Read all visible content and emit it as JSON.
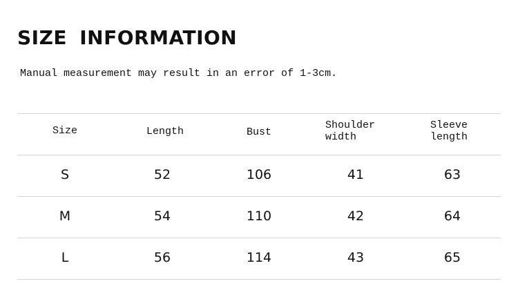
{
  "title": "SIZE INFORMATION",
  "note": "Manual measurement may result in an error of 1-3cm.",
  "table": {
    "headers": [
      {
        "line1": "Size",
        "line2": ""
      },
      {
        "line1": "Length",
        "line2": ""
      },
      {
        "line1": "Bust",
        "line2": ""
      },
      {
        "line1": "Shoulder",
        "line2": "width"
      },
      {
        "line1": "Sleeve",
        "line2": "length"
      }
    ],
    "rows": [
      [
        "S",
        "52",
        "106",
        "41",
        "63"
      ],
      [
        "M",
        "54",
        "110",
        "42",
        "64"
      ],
      [
        "L",
        "56",
        "114",
        "43",
        "65"
      ]
    ]
  }
}
